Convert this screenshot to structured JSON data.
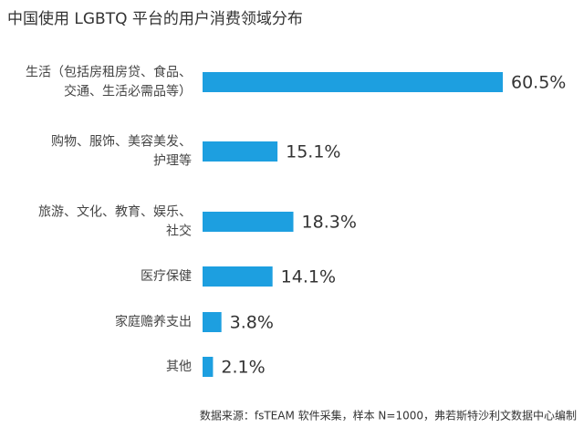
{
  "chart_data": {
    "type": "bar",
    "orientation": "horizontal",
    "title": "中国使用 LGBTQ 平台的用户消费领域分布",
    "categories": [
      [
        "生活（包括房租房贷、食品、",
        "交通、生活必需品等）"
      ],
      [
        "购物、服饰、美容美发、",
        "护理等"
      ],
      [
        "旅游、文化、教育、娱乐、",
        "社交"
      ],
      [
        "医疗保健"
      ],
      [
        "家庭赡养支出"
      ],
      [
        "其他"
      ]
    ],
    "values": [
      60.5,
      15.1,
      18.3,
      14.1,
      3.8,
      2.1
    ],
    "value_labels": [
      "60.5%",
      "15.1%",
      "18.3%",
      "14.1%",
      "3.8%",
      "2.1%"
    ],
    "color": "#1d9fe0",
    "source": "数据来源：fsTEAM 软件采集，样本 N=1000，弗若斯特沙利文数据中心编制"
  }
}
